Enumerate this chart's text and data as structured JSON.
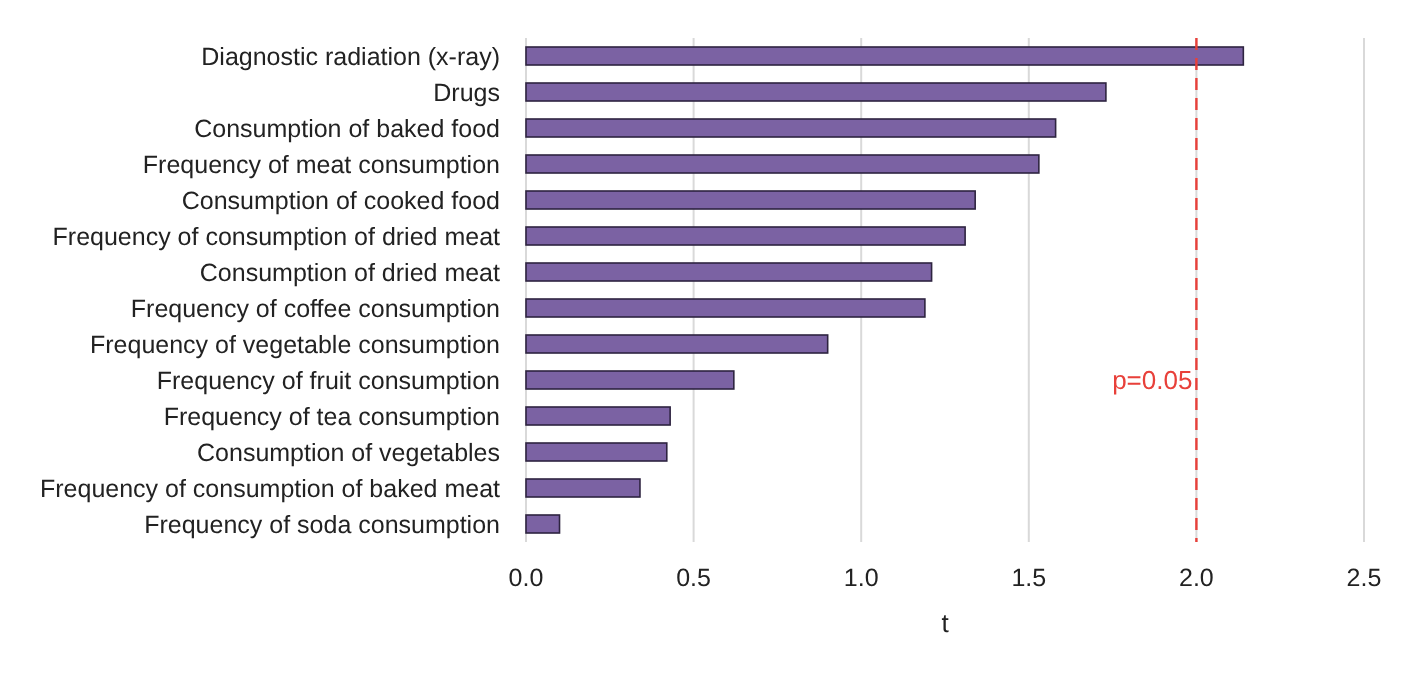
{
  "chart_data": {
    "type": "bar",
    "orientation": "horizontal",
    "xlabel": "t",
    "categories": [
      "Diagnostic radiation (x-ray)",
      "Drugs",
      "Consumption of baked food",
      "Frequency of meat consumption",
      "Consumption of cooked food",
      "Frequency of consumption of dried meat",
      "Consumption of dried meat",
      "Frequency of coffee consumption",
      "Frequency of vegetable consumption",
      "Frequency of fruit consumption",
      "Frequency of tea consumption",
      "Consumption of vegetables",
      "Frequency of consumption of baked meat",
      "Frequency of soda consumption"
    ],
    "values": [
      2.14,
      1.73,
      1.58,
      1.53,
      1.34,
      1.31,
      1.21,
      1.19,
      0.9,
      0.62,
      0.43,
      0.42,
      0.34,
      0.1
    ],
    "color": "#7b62a3",
    "xlim": [
      0,
      2.5
    ],
    "xticks": [
      {
        "value": 0,
        "label": "0.0"
      },
      {
        "value": 0.5,
        "label": "0.5"
      },
      {
        "value": 1,
        "label": "1.0"
      },
      {
        "value": 1.5,
        "label": "1.5"
      },
      {
        "value": 2,
        "label": "2.0"
      },
      {
        "value": 2.5,
        "label": "2.5"
      }
    ],
    "grid": "x",
    "ref_lines": [
      {
        "axis": "x",
        "value": 2,
        "color": "#e8403a",
        "line_style": "dashed"
      }
    ],
    "annotations": [
      "p=0.05"
    ]
  }
}
